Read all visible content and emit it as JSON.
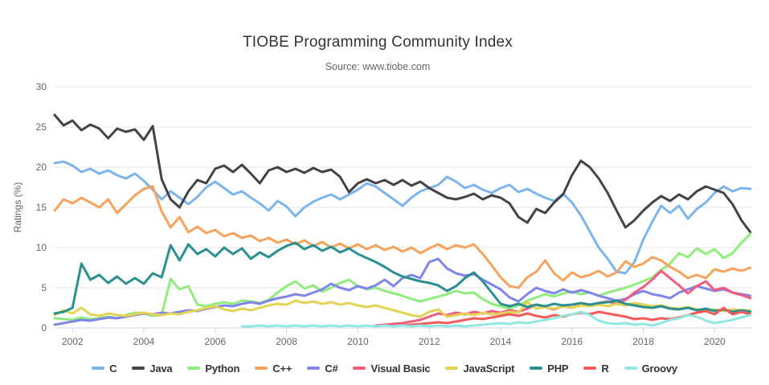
{
  "title": "TIOBE Programming Community Index",
  "subtitle": "Source: www.tiobe.com",
  "y_axis_title": "Ratings (%)",
  "theme": {
    "background": "#ffffff",
    "grid_color": "#e6e6e6",
    "axis_line_color": "#ccd6eb",
    "tick_label_color": "#666666",
    "title_color": "#333333",
    "subtitle_color": "#666666",
    "legend_label_color": "#333333"
  },
  "chart_data": {
    "type": "line",
    "title": "TIOBE Programming Community Index",
    "subtitle": "Source: www.tiobe.com",
    "xlabel": "",
    "ylabel": "Ratings (%)",
    "xlim": [
      2001.5,
      2021.05
    ],
    "ylim": [
      0,
      30
    ],
    "x_ticks": [
      2002,
      2004,
      2006,
      2008,
      2010,
      2012,
      2014,
      2016,
      2018,
      2020
    ],
    "y_ticks": [
      0,
      5,
      10,
      15,
      20,
      25,
      30
    ],
    "grid": "horizontal",
    "legend_position": "bottom",
    "line_width": 3,
    "series": [
      {
        "id": "c",
        "name": "C",
        "color": "#7cb5ec",
        "x_start": 2001.5,
        "x_step": 0.25,
        "values": [
          20.5,
          20.7,
          20.2,
          19.4,
          19.8,
          19.2,
          19.6,
          19.0,
          18.6,
          19.2,
          18.3,
          17.2,
          16.0,
          17.0,
          16.2,
          15.4,
          16.3,
          17.5,
          18.2,
          17.4,
          16.6,
          17.0,
          16.2,
          15.5,
          14.6,
          15.8,
          15.1,
          13.9,
          15.0,
          15.7,
          16.2,
          16.6,
          16.0,
          16.6,
          17.2,
          18.0,
          17.6,
          16.8,
          16.0,
          15.2,
          16.2,
          17.0,
          17.4,
          17.8,
          18.8,
          18.2,
          17.4,
          17.8,
          17.2,
          16.8,
          17.4,
          17.8,
          16.9,
          17.3,
          16.7,
          16.2,
          15.8,
          16.7,
          15.6,
          14.0,
          12.0,
          10.0,
          8.6,
          7.0,
          6.8,
          8.2,
          11.0,
          13.2,
          15.2,
          14.3,
          15.2,
          13.6,
          14.8,
          15.6,
          16.8,
          17.6,
          17.0,
          17.4,
          17.3
        ]
      },
      {
        "id": "java",
        "name": "Java",
        "color": "#434348",
        "x_start": 2001.5,
        "x_step": 0.25,
        "values": [
          26.5,
          25.2,
          25.8,
          24.6,
          25.3,
          24.8,
          23.6,
          24.8,
          24.4,
          24.7,
          23.4,
          25.1,
          18.5,
          16.0,
          15.0,
          17.0,
          18.4,
          18.0,
          19.8,
          20.2,
          19.4,
          20.3,
          19.2,
          18.0,
          19.6,
          20.0,
          19.4,
          19.8,
          19.3,
          19.9,
          19.4,
          19.7,
          18.8,
          16.9,
          18.0,
          18.5,
          18.0,
          18.4,
          17.8,
          18.4,
          17.7,
          18.2,
          17.4,
          16.8,
          16.2,
          16.0,
          16.3,
          16.7,
          16.0,
          16.5,
          16.2,
          15.5,
          13.8,
          13.1,
          14.8,
          14.3,
          15.6,
          16.6,
          19.0,
          20.8,
          20.0,
          18.6,
          16.8,
          14.6,
          12.5,
          13.4,
          14.6,
          15.6,
          16.4,
          15.8,
          16.6,
          16.0,
          17.0,
          17.6,
          17.2,
          16.8,
          15.4,
          13.4,
          11.9
        ]
      },
      {
        "id": "python",
        "name": "Python",
        "color": "#90ed7d",
        "x_start": 2001.5,
        "x_step": 0.25,
        "values": [
          1.2,
          1.1,
          1.0,
          1.3,
          1.1,
          1.2,
          1.4,
          1.2,
          1.6,
          1.9,
          1.8,
          1.5,
          1.6,
          6.1,
          4.8,
          5.2,
          2.9,
          2.7,
          3.0,
          3.2,
          3.0,
          3.4,
          3.3,
          3.1,
          3.5,
          4.4,
          5.2,
          5.8,
          4.9,
          5.3,
          4.5,
          5.0,
          5.6,
          6.0,
          5.2,
          4.8,
          5.0,
          4.6,
          4.3,
          4.0,
          3.6,
          3.3,
          3.6,
          3.9,
          4.2,
          4.6,
          4.3,
          4.4,
          3.6,
          3.0,
          2.7,
          2.4,
          2.8,
          3.4,
          3.8,
          4.2,
          3.9,
          4.3,
          4.5,
          4.2,
          4.4,
          4.0,
          4.4,
          4.7,
          5.0,
          5.4,
          5.8,
          6.3,
          7.2,
          8.0,
          9.3,
          8.8,
          9.9,
          9.2,
          9.8,
          8.7,
          9.3,
          10.6,
          11.7
        ]
      },
      {
        "id": "cpp",
        "name": "C++",
        "color": "#f7a35c",
        "x_start": 2001.5,
        "x_step": 0.25,
        "values": [
          14.6,
          16.0,
          15.5,
          16.2,
          15.6,
          15.0,
          16.0,
          14.3,
          15.4,
          16.5,
          17.3,
          17.6,
          14.5,
          12.5,
          13.8,
          11.9,
          12.6,
          11.8,
          12.2,
          11.4,
          11.8,
          11.2,
          11.5,
          10.8,
          11.2,
          10.6,
          11.0,
          10.4,
          10.9,
          10.2,
          10.7,
          10.0,
          10.5,
          9.9,
          10.4,
          9.8,
          10.3,
          9.7,
          10.1,
          9.5,
          10.0,
          9.3,
          9.9,
          10.4,
          9.8,
          10.3,
          10.0,
          10.4,
          9.2,
          7.8,
          6.3,
          5.2,
          5.0,
          6.3,
          7.0,
          8.4,
          6.8,
          5.9,
          6.9,
          6.3,
          6.6,
          7.1,
          6.4,
          6.9,
          8.3,
          7.6,
          8.0,
          8.8,
          8.4,
          7.6,
          7.0,
          6.2,
          6.6,
          6.2,
          7.3,
          7.0,
          7.4,
          7.1,
          7.5
        ]
      },
      {
        "id": "csharp",
        "name": "C#",
        "color": "#8085e9",
        "x_start": 2001.5,
        "x_step": 0.25,
        "values": [
          0.4,
          0.6,
          0.8,
          1.0,
          0.9,
          1.1,
          1.3,
          1.2,
          1.4,
          1.6,
          1.8,
          1.7,
          1.9,
          1.8,
          2.0,
          2.2,
          2.1,
          2.4,
          2.6,
          2.8,
          2.7,
          3.0,
          3.2,
          3.0,
          3.4,
          3.7,
          3.9,
          4.2,
          4.0,
          4.4,
          4.8,
          5.5,
          5.0,
          4.7,
          5.2,
          4.9,
          5.3,
          6.0,
          5.2,
          6.2,
          6.6,
          6.2,
          8.2,
          8.6,
          7.4,
          6.8,
          6.5,
          6.7,
          6.0,
          5.4,
          4.8,
          3.8,
          3.3,
          4.2,
          5.0,
          4.6,
          4.3,
          4.8,
          4.4,
          4.7,
          4.4,
          4.0,
          3.7,
          3.4,
          3.6,
          4.2,
          4.6,
          4.2,
          4.0,
          3.7,
          4.4,
          4.8,
          5.2,
          4.9,
          4.6,
          4.8,
          4.4,
          4.2,
          4.0
        ]
      },
      {
        "id": "visual-basic",
        "name": "Visual Basic",
        "color": "#f15c80",
        "x_start": 2010.5,
        "x_step": 0.25,
        "values": [
          0.3,
          0.4,
          0.5,
          0.6,
          0.8,
          1.0,
          1.4,
          1.8,
          1.6,
          1.9,
          1.7,
          2.0,
          1.8,
          2.1,
          1.9,
          2.2,
          2.0,
          2.4,
          2.9,
          2.6,
          2.3,
          2.7,
          2.5,
          2.9,
          2.8,
          3.1,
          3.3,
          3.0,
          3.5,
          4.4,
          5.1,
          6.0,
          7.1,
          6.2,
          5.3,
          4.3,
          5.2,
          5.8,
          4.7,
          5.0,
          4.4,
          4.1,
          3.7
        ]
      },
      {
        "id": "javascript",
        "name": "JavaScript",
        "color": "#e4d354",
        "x_start": 2001.5,
        "x_step": 0.25,
        "values": [
          1.6,
          2.2,
          1.8,
          2.5,
          1.7,
          1.5,
          1.8,
          1.6,
          1.5,
          1.7,
          1.9,
          1.7,
          1.6,
          1.8,
          1.7,
          2.0,
          2.2,
          2.5,
          2.7,
          2.3,
          2.1,
          2.4,
          2.2,
          2.5,
          2.8,
          3.0,
          2.9,
          3.4,
          3.1,
          3.3,
          3.0,
          3.2,
          2.9,
          3.1,
          2.8,
          2.6,
          2.8,
          2.5,
          2.2,
          1.9,
          1.6,
          1.4,
          2.0,
          2.3,
          1.4,
          1.6,
          1.8,
          1.6,
          1.9,
          1.7,
          1.8,
          2.0,
          1.9,
          3.2,
          2.4,
          2.6,
          2.4,
          2.7,
          2.5,
          2.8,
          2.7,
          2.9,
          2.7,
          3.0,
          2.8,
          3.1,
          2.9,
          2.7,
          2.8,
          2.5,
          2.4,
          2.6,
          2.3,
          2.2,
          2.3,
          2.1,
          2.3,
          2.2,
          2.2
        ]
      },
      {
        "id": "php",
        "name": "PHP",
        "color": "#2b908f",
        "x_start": 2001.5,
        "x_step": 0.25,
        "values": [
          1.8,
          2.0,
          2.5,
          8.0,
          6.0,
          6.6,
          5.6,
          6.4,
          5.5,
          6.2,
          5.5,
          6.8,
          6.3,
          10.3,
          8.4,
          10.4,
          9.2,
          9.8,
          8.9,
          10.0,
          9.2,
          9.9,
          8.6,
          9.4,
          8.8,
          9.6,
          10.2,
          10.6,
          9.8,
          10.3,
          9.6,
          10.1,
          9.4,
          9.9,
          9.2,
          8.7,
          8.2,
          7.6,
          6.9,
          6.4,
          6.1,
          5.8,
          5.6,
          5.3,
          4.6,
          5.2,
          6.2,
          6.9,
          5.8,
          4.4,
          3.0,
          2.7,
          3.0,
          2.6,
          2.9,
          2.7,
          3.0,
          2.8,
          2.9,
          3.1,
          2.9,
          3.1,
          3.2,
          3.4,
          3.0,
          2.8,
          2.6,
          2.5,
          2.7,
          2.4,
          2.3,
          2.5,
          2.2,
          2.4,
          2.1,
          2.3,
          2.0,
          2.2,
          2.0
        ]
      },
      {
        "id": "r",
        "name": "R",
        "color": "#f45b5b",
        "x_start": 2011.25,
        "x_step": 0.25,
        "values": [
          0.3,
          0.4,
          0.5,
          0.6,
          0.7,
          0.6,
          0.8,
          1.0,
          1.2,
          1.1,
          1.3,
          1.5,
          1.7,
          1.5,
          1.8,
          1.5,
          1.3,
          1.6,
          1.4,
          1.7,
          1.9,
          1.7,
          2.0,
          1.8,
          1.6,
          1.4,
          1.1,
          1.2,
          1.0,
          1.2,
          1.1,
          1.3,
          1.6,
          1.9,
          2.1,
          1.7,
          2.5,
          1.7,
          2.0,
          1.7
        ]
      },
      {
        "id": "groovy",
        "name": "Groovy",
        "color": "#91e8e1",
        "x_start": 2006.75,
        "x_step": 0.25,
        "values": [
          0.2,
          0.2,
          0.3,
          0.2,
          0.3,
          0.2,
          0.3,
          0.2,
          0.3,
          0.2,
          0.3,
          0.2,
          0.3,
          0.2,
          0.3,
          0.2,
          0.3,
          0.2,
          0.3,
          0.2,
          0.3,
          0.2,
          0.3,
          0.2,
          0.3,
          0.2,
          0.3,
          0.4,
          0.5,
          0.6,
          0.5,
          0.7,
          0.6,
          0.8,
          1.0,
          1.2,
          1.5,
          1.7,
          2.0,
          1.6,
          0.9,
          0.6,
          0.5,
          0.6,
          0.4,
          0.5,
          0.3,
          0.6,
          1.0,
          1.2,
          1.6,
          1.4,
          0.9,
          0.6,
          0.8,
          1.0,
          1.3,
          1.6
        ]
      }
    ]
  }
}
